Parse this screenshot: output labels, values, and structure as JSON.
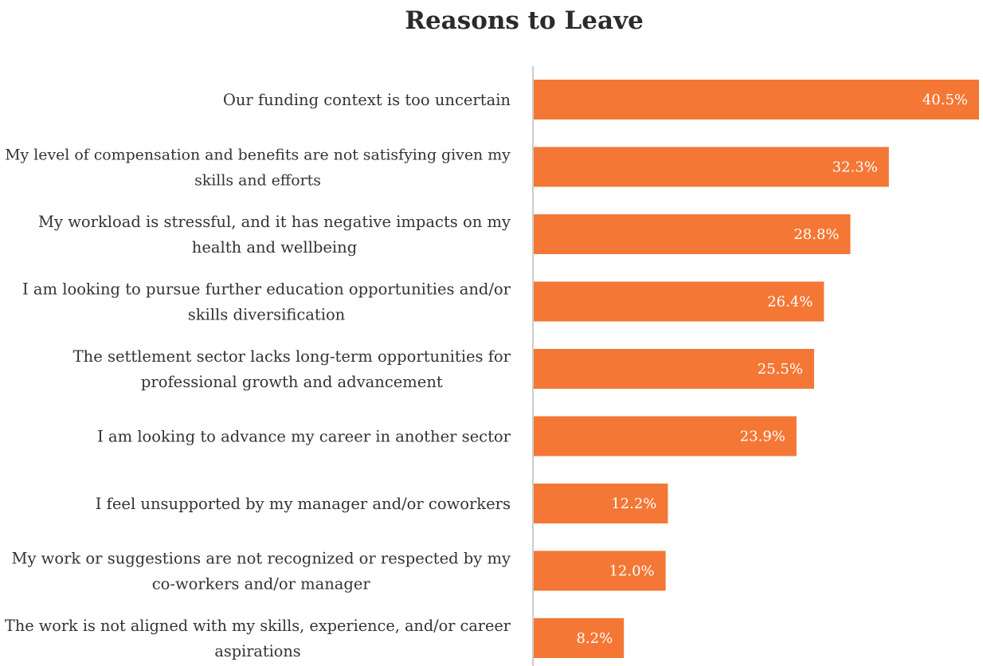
{
  "chart_data": {
    "type": "bar",
    "orientation": "horizontal",
    "title": "Reasons to Leave",
    "categories": [
      "Our funding context is too uncertain",
      "My level of compensation and benefits are not satisfying given my skills and efforts",
      "My workload is stressful, and it has negative impacts on my health and wellbeing",
      "I am looking to pursue further education opportunities and/or skills diversification",
      "The settlement sector lacks long-term opportunities for professional growth and advancement",
      "I am looking to advance my career in another sector",
      "I feel unsupported by my manager and/or coworkers",
      "My work or suggestions are not recognized or respected by my co-workers and/or manager",
      "The work is not aligned with my skills, experience, and/or career aspirations"
    ],
    "category_lines": [
      [
        "Our funding context is too uncertain"
      ],
      [
        "My level of compensation and benefits are not satisfying given my",
        "skills and efforts"
      ],
      [
        "My workload is stressful, and it has negative impacts on my",
        "health and wellbeing"
      ],
      [
        "I am looking to pursue further education opportunities and/or",
        "skills diversification"
      ],
      [
        "The settlement sector lacks long-term opportunities for",
        "professional growth and advancement"
      ],
      [
        "I am looking to advance my career in another sector"
      ],
      [
        "I feel unsupported by my manager and/or coworkers"
      ],
      [
        "My work or suggestions are not recognized or respected by my",
        "co-workers and/or manager"
      ],
      [
        "The work is not aligned with my skills, experience, and/or career",
        "aspirations"
      ]
    ],
    "values": [
      40.5,
      32.3,
      28.8,
      26.4,
      25.5,
      23.9,
      12.2,
      12.0,
      8.2
    ],
    "value_labels": [
      "40.5%",
      "32.3%",
      "28.8%",
      "26.4%",
      "25.5%",
      "23.9%",
      "12.2%",
      "12.0%",
      "8.2%"
    ],
    "xlim": [
      0,
      40.5
    ],
    "grid": false,
    "legend": "none",
    "colors": {
      "bar": "#f47735",
      "axis": "#cccccc",
      "label_text": "#333333",
      "title_text": "#2b2b2b",
      "value_text": "#ffffff"
    }
  }
}
